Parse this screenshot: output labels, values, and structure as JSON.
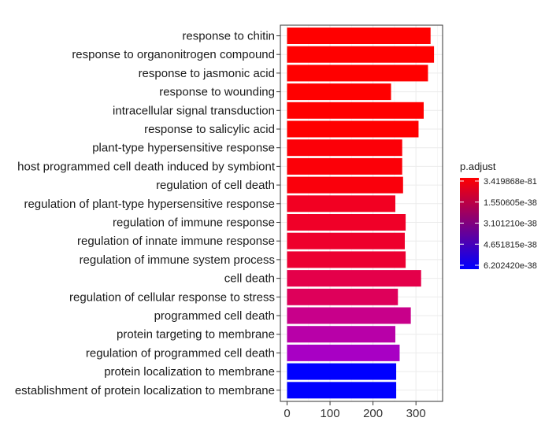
{
  "chart_data": {
    "type": "bar",
    "orientation": "horizontal",
    "title": "",
    "xlabel": "",
    "ylabel": "",
    "xlim": [
      0,
      350
    ],
    "xticks": [
      0,
      100,
      200,
      300
    ],
    "xtick_labels": [
      "0",
      "100",
      "200",
      "300"
    ],
    "grid": true,
    "legend_position": "right",
    "categories": [
      "response to chitin",
      "response to organonitrogen compound",
      "response to jasmonic acid",
      "response to wounding",
      "intracellular signal transduction",
      "response to salicylic acid",
      "plant-type hypersensitive response",
      "host programmed cell death induced by symbiont",
      "regulation of cell death",
      "regulation of plant-type hypersensitive response",
      "regulation of immune response",
      "regulation of innate immune response",
      "regulation of immune system process",
      "cell death",
      "regulation of cellular response to stress",
      "programmed cell death",
      "protein targeting to membrane",
      "regulation of programmed cell death",
      "protein localization to membrane",
      "establishment of protein localization to membrane"
    ],
    "values": [
      334,
      342,
      328,
      242,
      318,
      306,
      268,
      268,
      270,
      252,
      276,
      274,
      276,
      312,
      258,
      288,
      252,
      262,
      254,
      254
    ],
    "color_values": [
      "#ff0000",
      "#ff0000",
      "#ff0000",
      "#ff0000",
      "#ff0000",
      "#ff0000",
      "#fc0008",
      "#fc0008",
      "#fa000c",
      "#f20022",
      "#f00028",
      "#ee002c",
      "#ec0032",
      "#e4004a",
      "#de005a",
      "#c8008a",
      "#b800a8",
      "#a800c4",
      "#0000ff",
      "#0000ff"
    ],
    "legend": {
      "title": "p.adjust",
      "labels": [
        "3.419868e-81",
        "1.550605e-38",
        "3.101210e-38",
        "4.651815e-38",
        "6.202420e-38"
      ],
      "gradient": [
        "#ff0000",
        "#0000ff"
      ]
    }
  }
}
